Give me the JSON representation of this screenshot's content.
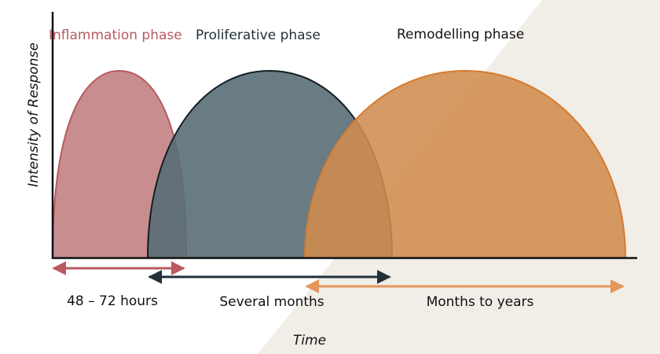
{
  "labels": {
    "y_axis": "Intensity of Response",
    "x_axis": "Time"
  },
  "phases": [
    {
      "id": "inflammation",
      "title": "Inflammation phase",
      "duration": "48 – 72 hours",
      "title_color": "#b85a5f",
      "fill": "#c48486",
      "stroke": "#b85a5f",
      "arrow_color": "#b85a5f",
      "label_color": "#111111"
    },
    {
      "id": "proliferative",
      "title": "Proliferative phase",
      "duration": "Several months",
      "title_color": "#1f3038",
      "fill": "#596d75",
      "stroke": "#111e23",
      "arrow_color": "#1f3038",
      "label_color": "#111111"
    },
    {
      "id": "remodelling",
      "title": "Remodelling phase",
      "duration": "Months to years",
      "title_color": "#111111",
      "fill": "#d08c4f",
      "stroke": "#d67a2c",
      "arrow_color": "#e2975c",
      "label_color": "#111111"
    }
  ],
  "colors": {
    "background_band": "#f1ede7",
    "axis": "#111111"
  }
}
